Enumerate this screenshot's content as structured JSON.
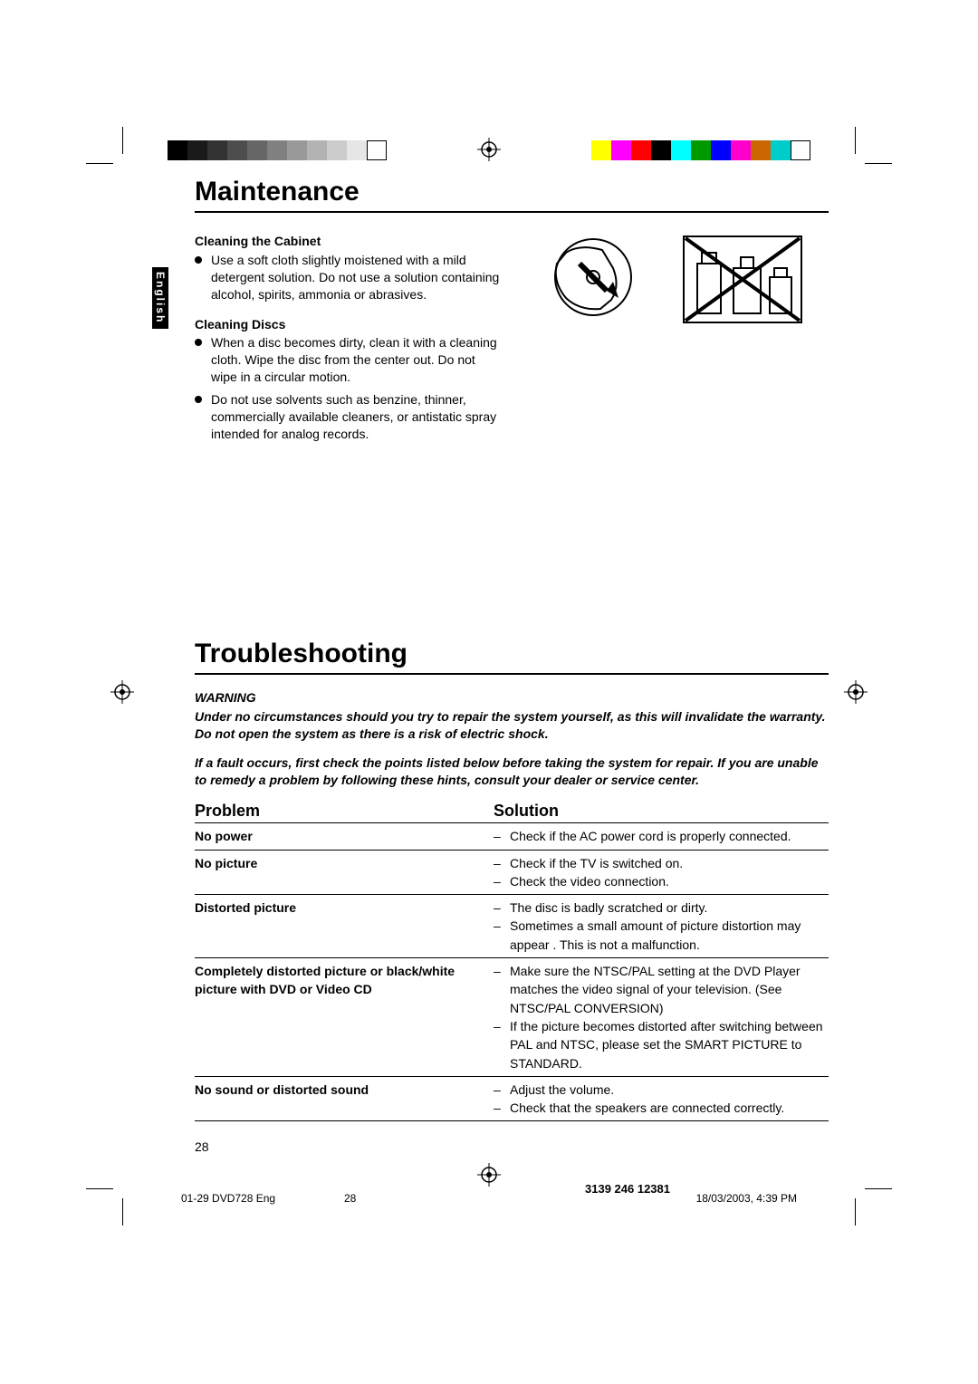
{
  "colorbars": {
    "left": [
      "#000000",
      "#1a1a1a",
      "#333333",
      "#4d4d4d",
      "#666666",
      "#808080",
      "#999999",
      "#b3b3b3",
      "#cccccc",
      "#e6e6e6",
      "#ffffff"
    ],
    "right": [
      "#ffff00",
      "#ff00ff",
      "#ff0000",
      "#000000",
      "#00ffff",
      "#009900",
      "#0000ff",
      "#ff00cc",
      "#cc6600",
      "#00cccc",
      "#ffffff"
    ]
  },
  "lang_tab": "English",
  "maintenance": {
    "heading": "Maintenance",
    "sec1_title": "Cleaning the Cabinet",
    "sec1_b1": "Use a soft cloth slightly moistened with a mild detergent solution. Do not use a solution containing alcohol, spirits, ammonia or abrasives.",
    "sec2_title": "Cleaning Discs",
    "sec2_b1": "When a disc becomes dirty, clean it with a cleaning cloth. Wipe the disc from the center out. Do not wipe in a circular motion.",
    "sec2_b2": "Do not use solvents such as benzine, thinner, commercially available cleaners, or antistatic spray intended for analog records."
  },
  "troubleshooting": {
    "heading": "Troubleshooting",
    "warning_title": "WARNING",
    "warning_body1": "Under no circumstances should you try to repair the system yourself, as this will invalidate the warranty.  Do not open the system as there is a risk of electric shock.",
    "warning_body2": "If a fault occurs, first check the points listed below before taking the system for repair. If you are unable to remedy a problem by following these hints, consult your dealer or service center.",
    "col_problem": "Problem",
    "col_solution": "Solution",
    "rows": [
      {
        "problem": "No power",
        "solutions": [
          "Check if the AC power cord is properly connected."
        ]
      },
      {
        "problem": "No picture",
        "solutions": [
          "Check if the TV is switched on.",
          "Check the video connection."
        ]
      },
      {
        "problem": "Distorted picture",
        "solutions": [
          "The disc is badly scratched or dirty.",
          "Sometimes a small amount of picture distortion may appear . This is not a malfunction."
        ]
      },
      {
        "problem": "Completely distorted picture or black/white picture with DVD or Video CD",
        "solutions": [
          "Make sure the NTSC/PAL setting at the DVD Player matches the video signal of your television. (See NTSC/PAL CONVERSION)",
          "If the picture becomes distorted after switching between PAL and NTSC, please set the SMART PICTURE to STANDARD."
        ]
      },
      {
        "problem": "No sound or distorted sound",
        "solutions": [
          "Adjust the volume.",
          "Check that the speakers are connected correctly."
        ]
      }
    ]
  },
  "page_number": "28",
  "footer": {
    "left": "01-29 DVD728 Eng",
    "mid_page": "28",
    "right_ts": "18/03/2003, 4:39 PM",
    "doc_code": "3139 246 12381"
  }
}
